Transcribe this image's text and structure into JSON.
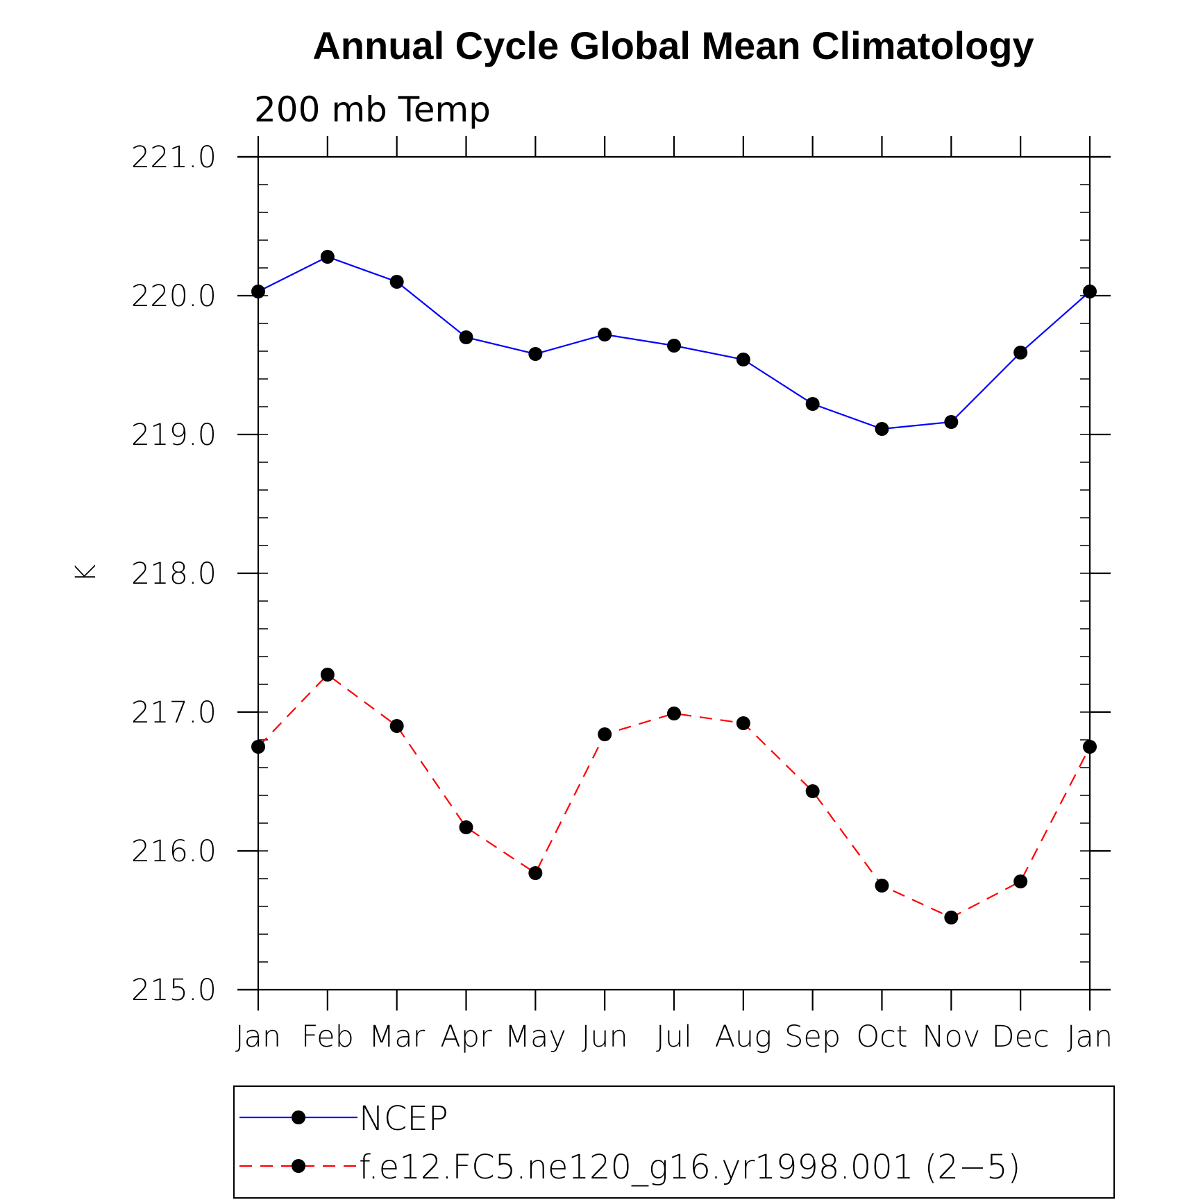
{
  "chart_data": {
    "type": "line",
    "title": "Annual Cycle Global Mean Climatology",
    "subtitle": "200 mb Temp",
    "ylabel": "K",
    "xlabel": "",
    "categories": [
      "Jan",
      "Feb",
      "Mar",
      "Apr",
      "May",
      "Jun",
      "Jul",
      "Aug",
      "Sep",
      "Oct",
      "Nov",
      "Dec",
      "Jan"
    ],
    "ylim": [
      215.0,
      221.0
    ],
    "yticks": [
      "215.0",
      "216.0",
      "217.0",
      "218.0",
      "219.0",
      "220.0",
      "221.0"
    ],
    "series": [
      {
        "name": "NCEP",
        "color": "#0000ff",
        "dash": "solid",
        "marker": "dot",
        "values": [
          220.03,
          220.28,
          220.1,
          219.7,
          219.58,
          219.72,
          219.64,
          219.54,
          219.22,
          219.04,
          219.09,
          219.59,
          220.03
        ]
      },
      {
        "name": "f.e12.FC5.ne120_g16.yr1998.001 (2−5)",
        "color": "#ff0000",
        "dash": "dashed",
        "marker": "dot",
        "values": [
          216.75,
          217.27,
          216.9,
          216.17,
          215.84,
          216.84,
          216.99,
          216.92,
          216.43,
          215.75,
          215.52,
          215.78,
          216.75
        ]
      }
    ],
    "legend_position": "bottom"
  }
}
